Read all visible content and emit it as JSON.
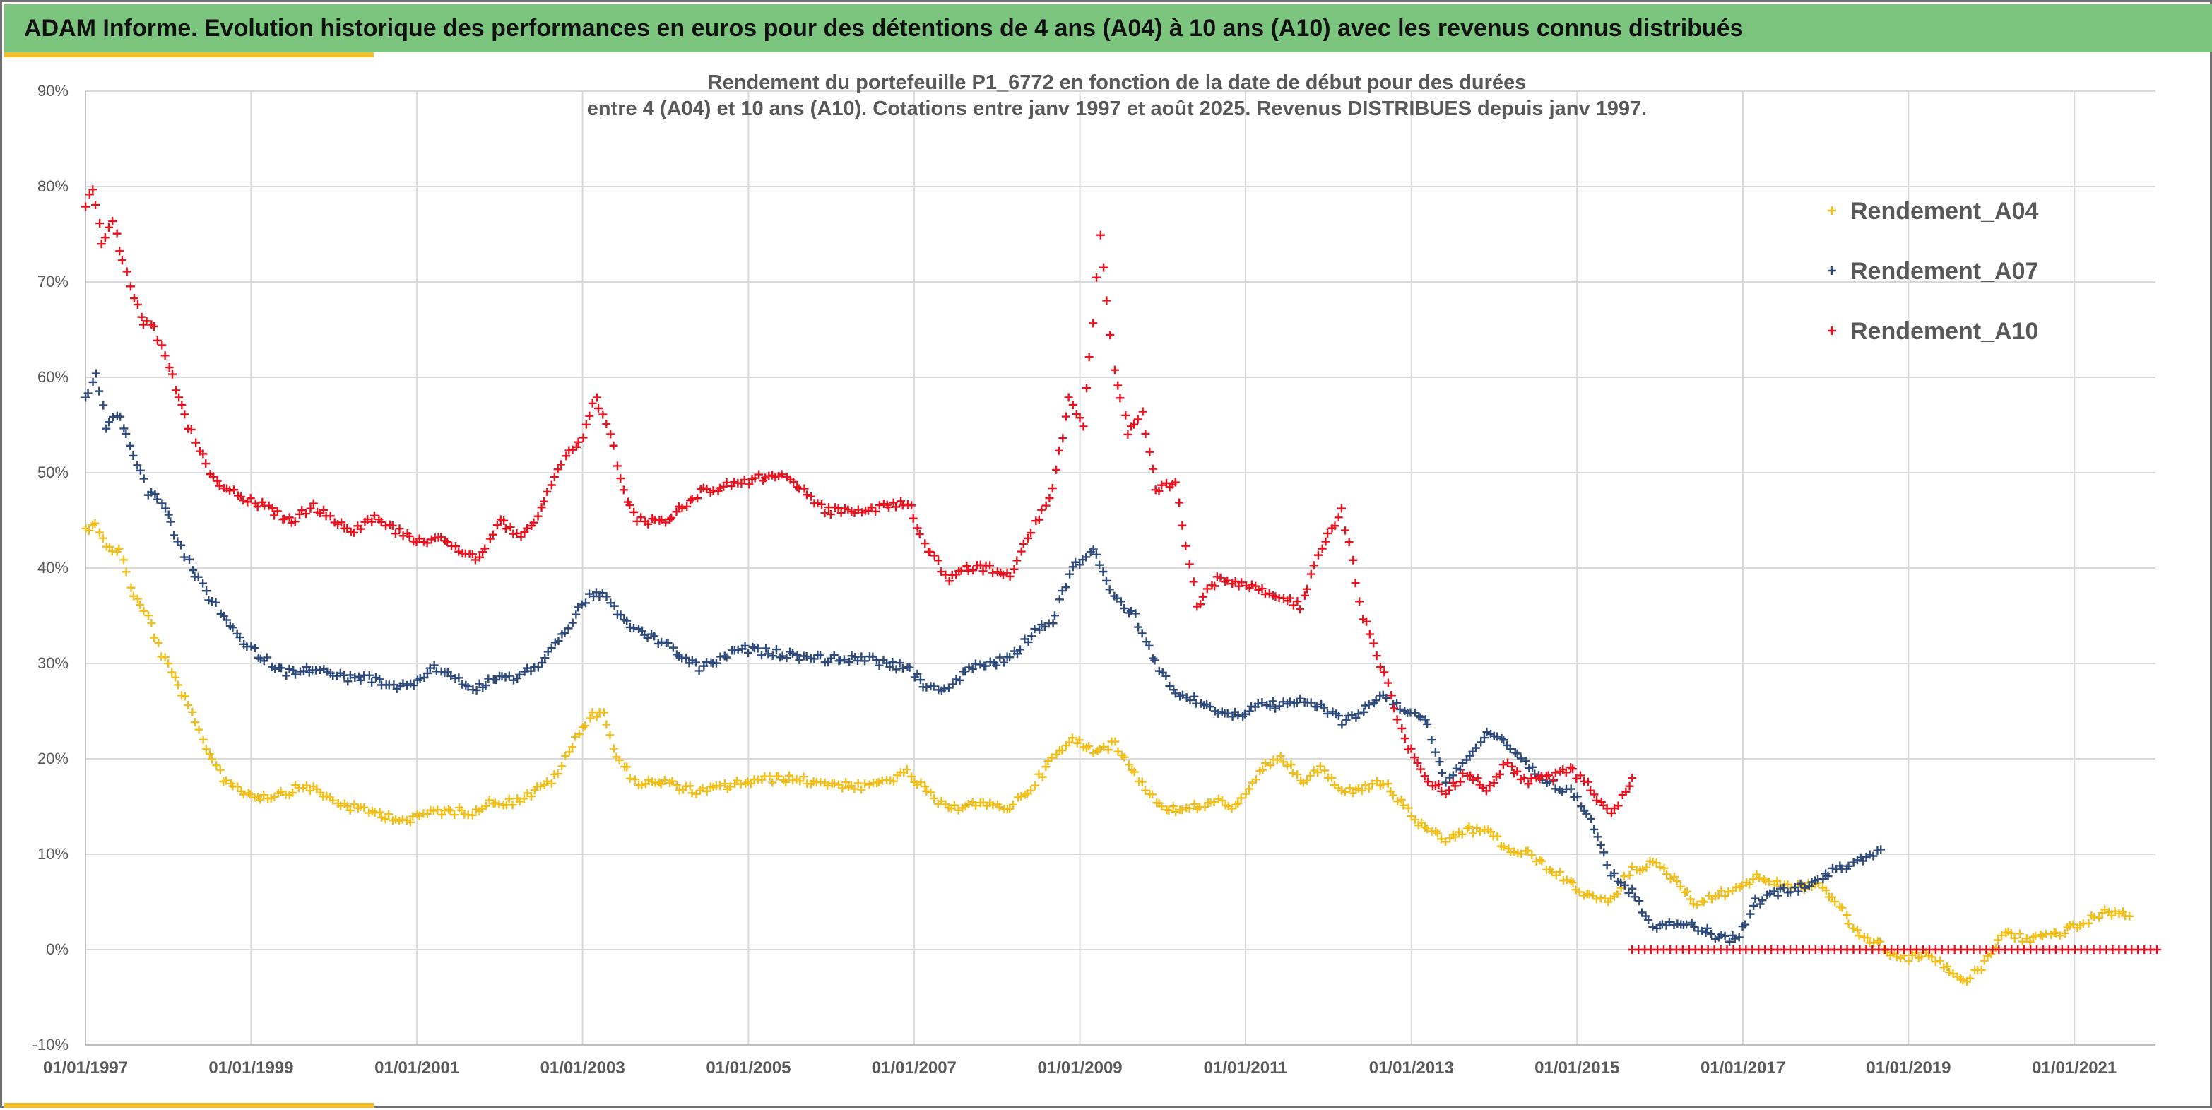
{
  "banner": {
    "title": "ADAM Informe. Evolution historique des performances en euros pour des détentions de 4 ans (A04) à 10 ans (A10) avec les revenus connus distribués"
  },
  "colors": {
    "banner_bg": "#7cc57e",
    "accent": "#f2be29",
    "A04": "#f2be1a",
    "A07": "#2e4a7a",
    "A10": "#e8121e"
  },
  "chart_data": {
    "type": "scatter",
    "title_line1": "Rendement du portefeuille P1_6772 en fonction de la date de début pour des durées",
    "title_line2": "entre 4 (A04) et 10 ans (A10). Cotations entre janv 1997 et août 2025. Revenus DISTRIBUES depuis janv 1997.",
    "xlabel": "",
    "ylabel": "",
    "x_scale": "date",
    "xlim": [
      "1997-01-01",
      "2021-12-31"
    ],
    "x_ticks": [
      "01/01/1997",
      "01/01/1999",
      "01/01/2001",
      "01/01/2003",
      "01/01/2005",
      "01/01/2007",
      "01/01/2009",
      "01/01/2011",
      "01/01/2013",
      "01/01/2015",
      "01/01/2017",
      "01/01/2019",
      "01/01/2021"
    ],
    "ylim": [
      -10,
      90
    ],
    "y_ticks": [
      "-10%",
      "0%",
      "10%",
      "20%",
      "30%",
      "40%",
      "50%",
      "60%",
      "70%",
      "80%",
      "90%"
    ],
    "y_unit": "%",
    "grid": true,
    "legend_position": "top-right",
    "marker": "+",
    "series": [
      {
        "name": "Rendement_A04",
        "color": "#f2be1a",
        "points": [
          [
            "1997-01-01",
            44
          ],
          [
            "1997-02-15",
            45
          ],
          [
            "1997-04-01",
            42
          ],
          [
            "1997-06-01",
            42
          ],
          [
            "1997-08-01",
            37
          ],
          [
            "1997-10-01",
            35
          ],
          [
            "1997-12-01",
            31
          ],
          [
            "1998-03-01",
            27
          ],
          [
            "1998-06-01",
            22
          ],
          [
            "1998-09-01",
            18
          ],
          [
            "1998-12-01",
            16.5
          ],
          [
            "1999-03-01",
            16
          ],
          [
            "1999-06-01",
            16.5
          ],
          [
            "1999-09-01",
            17.2
          ],
          [
            "1999-12-01",
            16
          ],
          [
            "2000-03-01",
            15
          ],
          [
            "2000-06-01",
            14.5
          ],
          [
            "2000-09-01",
            14
          ],
          [
            "2000-12-01",
            13.5
          ],
          [
            "2001-03-01",
            14.5
          ],
          [
            "2001-06-01",
            14.5
          ],
          [
            "2001-09-01",
            14.5
          ],
          [
            "2001-12-01",
            15.5
          ],
          [
            "2002-03-01",
            15.5
          ],
          [
            "2002-06-01",
            16.5
          ],
          [
            "2002-09-01",
            18
          ],
          [
            "2002-12-01",
            22
          ],
          [
            "2003-02-01",
            24.5
          ],
          [
            "2003-04-01",
            25
          ],
          [
            "2003-06-01",
            20
          ],
          [
            "2003-09-01",
            17.5
          ],
          [
            "2004-01-01",
            17.5
          ],
          [
            "2004-06-01",
            16.5
          ],
          [
            "2004-12-01",
            17.5
          ],
          [
            "2005-06-01",
            18
          ],
          [
            "2005-12-01",
            17.5
          ],
          [
            "2006-06-01",
            17
          ],
          [
            "2006-12-01",
            18.5
          ],
          [
            "2007-03-01",
            16.5
          ],
          [
            "2007-06-01",
            14.5
          ],
          [
            "2007-09-01",
            15.5
          ],
          [
            "2007-12-01",
            15
          ],
          [
            "2008-03-01",
            15
          ],
          [
            "2008-06-01",
            17
          ],
          [
            "2008-09-01",
            20
          ],
          [
            "2008-12-01",
            22
          ],
          [
            "2009-03-01",
            21
          ],
          [
            "2009-06-01",
            21.5
          ],
          [
            "2009-09-01",
            18.5
          ],
          [
            "2009-12-01",
            15.5
          ],
          [
            "2010-03-01",
            14.5
          ],
          [
            "2010-09-01",
            15.5
          ],
          [
            "2010-12-01",
            15
          ],
          [
            "2011-03-01",
            18.5
          ],
          [
            "2011-06-01",
            20.5
          ],
          [
            "2011-09-01",
            17.5
          ],
          [
            "2011-12-01",
            19
          ],
          [
            "2012-03-01",
            16.5
          ],
          [
            "2012-06-01",
            17
          ],
          [
            "2012-09-01",
            17.5
          ],
          [
            "2012-12-01",
            15
          ],
          [
            "2013-03-01",
            12.5
          ],
          [
            "2013-06-01",
            11.5
          ],
          [
            "2013-09-01",
            12.5
          ],
          [
            "2013-12-01",
            12.5
          ],
          [
            "2014-03-01",
            10.5
          ],
          [
            "2014-06-01",
            10
          ],
          [
            "2014-09-01",
            8.5
          ],
          [
            "2014-12-01",
            7
          ],
          [
            "2015-03-01",
            5.5
          ],
          [
            "2015-06-01",
            5
          ],
          [
            "2015-09-01",
            8.5
          ],
          [
            "2015-12-01",
            9
          ],
          [
            "2016-03-01",
            7.5
          ],
          [
            "2016-06-01",
            5
          ],
          [
            "2016-09-01",
            5.5
          ],
          [
            "2016-12-01",
            6.5
          ],
          [
            "2017-03-01",
            7.5
          ],
          [
            "2017-06-01",
            7
          ],
          [
            "2017-09-01",
            6.5
          ],
          [
            "2017-12-01",
            7
          ],
          [
            "2018-03-01",
            4.5
          ],
          [
            "2018-06-01",
            1.5
          ],
          [
            "2018-09-01",
            0.5
          ],
          [
            "2018-12-01",
            -1
          ],
          [
            "2019-03-01",
            -0.5
          ],
          [
            "2019-06-01",
            -1.5
          ],
          [
            "2019-09-01",
            -3.5
          ],
          [
            "2019-12-01",
            -1.5
          ],
          [
            "2020-03-01",
            2
          ],
          [
            "2020-06-01",
            1
          ],
          [
            "2020-09-01",
            1.5
          ],
          [
            "2020-12-01",
            2
          ],
          [
            "2021-03-01",
            3
          ],
          [
            "2021-06-01",
            4
          ],
          [
            "2021-09-01",
            3.5
          ]
        ]
      },
      {
        "name": "Rendement_A07",
        "color": "#2e4a7a",
        "points": [
          [
            "1997-01-01",
            58
          ],
          [
            "1997-02-15",
            60
          ],
          [
            "1997-04-01",
            55
          ],
          [
            "1997-06-01",
            56
          ],
          [
            "1997-08-01",
            52
          ],
          [
            "1997-10-01",
            48
          ],
          [
            "1997-12-01",
            47
          ],
          [
            "1998-03-01",
            42
          ],
          [
            "1998-06-01",
            38
          ],
          [
            "1998-09-01",
            35
          ],
          [
            "1998-12-01",
            32
          ],
          [
            "1999-03-01",
            30.5
          ],
          [
            "1999-06-01",
            29
          ],
          [
            "1999-09-01",
            29.5
          ],
          [
            "1999-12-01",
            29
          ],
          [
            "2000-03-01",
            28.5
          ],
          [
            "2000-06-01",
            28.5
          ],
          [
            "2000-09-01",
            27.5
          ],
          [
            "2000-12-01",
            27.5
          ],
          [
            "2001-03-01",
            29.5
          ],
          [
            "2001-06-01",
            29
          ],
          [
            "2001-09-01",
            27
          ],
          [
            "2001-12-01",
            28.5
          ],
          [
            "2002-03-01",
            28.5
          ],
          [
            "2002-06-01",
            29.5
          ],
          [
            "2002-09-01",
            32
          ],
          [
            "2002-12-01",
            35
          ],
          [
            "2003-02-01",
            37
          ],
          [
            "2003-04-01",
            37.5
          ],
          [
            "2003-06-01",
            35
          ],
          [
            "2003-09-01",
            33.5
          ],
          [
            "2004-01-01",
            32
          ],
          [
            "2004-06-01",
            29.5
          ],
          [
            "2004-12-01",
            31.5
          ],
          [
            "2005-06-01",
            31
          ],
          [
            "2005-12-01",
            30.5
          ],
          [
            "2006-06-01",
            30.5
          ],
          [
            "2006-12-01",
            29.5
          ],
          [
            "2007-03-01",
            27.5
          ],
          [
            "2007-06-01",
            27.5
          ],
          [
            "2007-09-01",
            29.5
          ],
          [
            "2007-12-01",
            30
          ],
          [
            "2008-03-01",
            30.5
          ],
          [
            "2008-06-01",
            33
          ],
          [
            "2008-09-01",
            34.5
          ],
          [
            "2008-12-01",
            40
          ],
          [
            "2009-03-01",
            42
          ],
          [
            "2009-06-01",
            37
          ],
          [
            "2009-09-01",
            35
          ],
          [
            "2009-12-01",
            30
          ],
          [
            "2010-03-01",
            27
          ],
          [
            "2010-09-01",
            25
          ],
          [
            "2010-12-01",
            24.5
          ],
          [
            "2011-03-01",
            26
          ],
          [
            "2011-06-01",
            25.5
          ],
          [
            "2011-09-01",
            26
          ],
          [
            "2011-12-01",
            25.5
          ],
          [
            "2012-03-01",
            24
          ],
          [
            "2012-06-01",
            25
          ],
          [
            "2012-09-01",
            27
          ],
          [
            "2012-12-01",
            25
          ],
          [
            "2013-03-01",
            24.5
          ],
          [
            "2013-06-01",
            17.5
          ],
          [
            "2013-09-01",
            20
          ],
          [
            "2013-12-01",
            22.5
          ],
          [
            "2014-03-01",
            21.5
          ],
          [
            "2014-06-01",
            19
          ],
          [
            "2014-09-01",
            17.5
          ],
          [
            "2014-12-01",
            16.5
          ],
          [
            "2015-03-01",
            14
          ],
          [
            "2015-06-01",
            8
          ],
          [
            "2015-09-01",
            6
          ],
          [
            "2015-12-01",
            2.5
          ],
          [
            "2016-03-01",
            3
          ],
          [
            "2016-06-01",
            2.5
          ],
          [
            "2016-09-01",
            1.5
          ],
          [
            "2016-12-01",
            1
          ],
          [
            "2017-03-01",
            5
          ],
          [
            "2017-06-01",
            6
          ],
          [
            "2017-09-01",
            6.5
          ],
          [
            "2017-12-01",
            7.5
          ],
          [
            "2018-03-01",
            8.5
          ],
          [
            "2018-06-01",
            9.5
          ],
          [
            "2018-09-01",
            10.5
          ]
        ]
      },
      {
        "name": "Rendement_A10",
        "color": "#e8121e",
        "points": [
          [
            "1997-01-01",
            78
          ],
          [
            "1997-02-01",
            80
          ],
          [
            "1997-03-15",
            74
          ],
          [
            "1997-05-01",
            76
          ],
          [
            "1997-07-01",
            71
          ],
          [
            "1997-09-01",
            66
          ],
          [
            "1997-11-01",
            65
          ],
          [
            "1998-01-01",
            61
          ],
          [
            "1998-04-01",
            55
          ],
          [
            "1998-07-01",
            50
          ],
          [
            "1998-10-01",
            48
          ],
          [
            "1999-01-01",
            47
          ],
          [
            "1999-04-01",
            46
          ],
          [
            "1999-07-01",
            45
          ],
          [
            "1999-10-01",
            46.5
          ],
          [
            "2000-01-01",
            45
          ],
          [
            "2000-04-01",
            44
          ],
          [
            "2000-07-01",
            45.5
          ],
          [
            "2000-10-01",
            44
          ],
          [
            "2001-01-01",
            43
          ],
          [
            "2001-04-01",
            43
          ],
          [
            "2001-07-01",
            42
          ],
          [
            "2001-10-01",
            41
          ],
          [
            "2002-01-01",
            45
          ],
          [
            "2002-04-01",
            43
          ],
          [
            "2002-07-01",
            46
          ],
          [
            "2002-10-01",
            51
          ],
          [
            "2003-01-01",
            54
          ],
          [
            "2003-03-01",
            58
          ],
          [
            "2003-05-01",
            54
          ],
          [
            "2003-07-01",
            48
          ],
          [
            "2003-09-01",
            45
          ],
          [
            "2004-01-01",
            45
          ],
          [
            "2004-06-01",
            48
          ],
          [
            "2004-12-01",
            49
          ],
          [
            "2005-06-01",
            50
          ],
          [
            "2005-12-01",
            46
          ],
          [
            "2006-06-01",
            46
          ],
          [
            "2006-12-01",
            47
          ],
          [
            "2007-03-01",
            42
          ],
          [
            "2007-06-01",
            39
          ],
          [
            "2007-09-01",
            40
          ],
          [
            "2007-12-01",
            40
          ],
          [
            "2008-03-01",
            39.5
          ],
          [
            "2008-06-01",
            44
          ],
          [
            "2008-09-01",
            48
          ],
          [
            "2008-11-15",
            58
          ],
          [
            "2009-01-15",
            55
          ],
          [
            "2009-03-01",
            66
          ],
          [
            "2009-04-01",
            75
          ],
          [
            "2009-06-01",
            61
          ],
          [
            "2009-08-01",
            54
          ],
          [
            "2009-10-01",
            56
          ],
          [
            "2009-12-01",
            48
          ],
          [
            "2010-03-01",
            49
          ],
          [
            "2010-06-01",
            36
          ],
          [
            "2010-09-01",
            39
          ],
          [
            "2010-12-01",
            38.5
          ],
          [
            "2011-03-01",
            38
          ],
          [
            "2011-06-01",
            37
          ],
          [
            "2011-09-01",
            36
          ],
          [
            "2011-12-01",
            42
          ],
          [
            "2012-03-01",
            46
          ],
          [
            "2012-06-01",
            35
          ],
          [
            "2012-09-01",
            29
          ],
          [
            "2012-12-01",
            22
          ],
          [
            "2013-03-01",
            18
          ],
          [
            "2013-06-01",
            16.5
          ],
          [
            "2013-09-01",
            18.5
          ],
          [
            "2013-12-01",
            17
          ],
          [
            "2014-03-01",
            19.5
          ],
          [
            "2014-06-01",
            17.5
          ],
          [
            "2014-09-01",
            18
          ],
          [
            "2014-12-01",
            19
          ],
          [
            "2015-03-01",
            17
          ],
          [
            "2015-06-01",
            14
          ],
          [
            "2015-09-01",
            18
          ]
        ]
      },
      {
        "name": "",
        "color": "#e8121e",
        "points": [
          [
            "2015-09-01",
            0
          ],
          [
            "2021-12-31",
            0
          ]
        ]
      }
    ]
  }
}
